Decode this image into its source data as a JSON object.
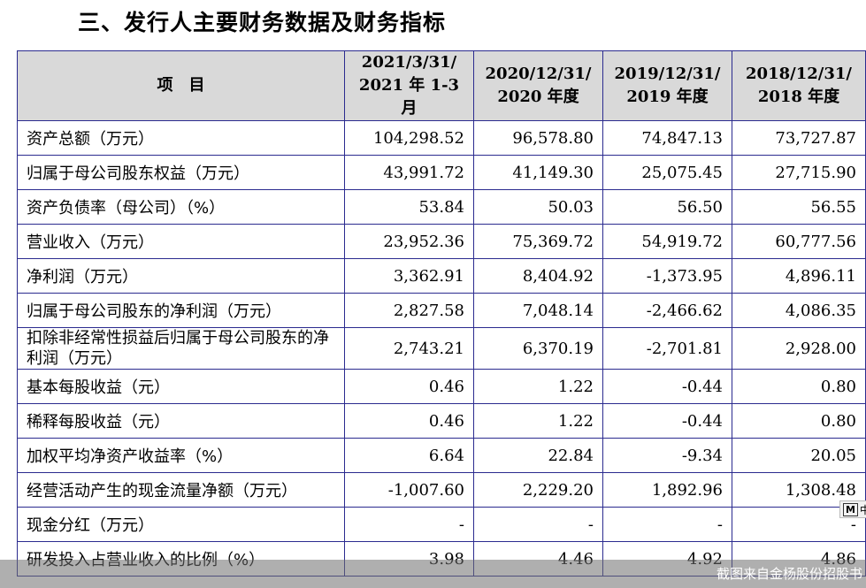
{
  "section_title": "三、发行人主要财务数据及财务指标",
  "table": {
    "header": {
      "item_label": "项　目",
      "periods": [
        {
          "line1": "2021/3/31/",
          "line2": "2021 年 1-3 月"
        },
        {
          "line1": "2020/12/31/",
          "line2": "2020 年度"
        },
        {
          "line1": "2019/12/31/",
          "line2": "2019 年度"
        },
        {
          "line1": "2018/12/31/",
          "line2": "2018 年度"
        }
      ]
    },
    "rows": [
      {
        "label": "资产总额（万元）",
        "values": [
          "104,298.52",
          "96,578.80",
          "74,847.13",
          "73,727.87"
        ]
      },
      {
        "label": "归属于母公司股东权益（万元）",
        "values": [
          "43,991.72",
          "41,149.30",
          "25,075.45",
          "27,715.90"
        ]
      },
      {
        "label": "资产负债率（母公司）（%）",
        "values": [
          "53.84",
          "50.03",
          "56.50",
          "56.55"
        ]
      },
      {
        "label": "营业收入（万元）",
        "values": [
          "23,952.36",
          "75,369.72",
          "54,919.72",
          "60,777.56"
        ]
      },
      {
        "label": "净利润（万元）",
        "values": [
          "3,362.91",
          "8,404.92",
          "-1,373.95",
          "4,896.11"
        ]
      },
      {
        "label": "归属于母公司股东的净利润（万元）",
        "values": [
          "2,827.58",
          "7,048.14",
          "-2,466.62",
          "4,086.35"
        ]
      },
      {
        "label": "扣除非经常性损益后归属于母公司股东的净利润（万元）",
        "values": [
          "2,743.21",
          "6,370.19",
          "-2,701.81",
          "2,928.00"
        ]
      },
      {
        "label": "基本每股收益（元）",
        "values": [
          "0.46",
          "1.22",
          "-0.44",
          "0.80"
        ]
      },
      {
        "label": "稀释每股收益（元）",
        "values": [
          "0.46",
          "1.22",
          "-0.44",
          "0.80"
        ]
      },
      {
        "label": "加权平均净资产收益率（%）",
        "values": [
          "6.64",
          "22.84",
          "-9.34",
          "20.05"
        ]
      },
      {
        "label": "经营活动产生的现金流量净额（万元）",
        "values": [
          "-1,007.60",
          "2,229.20",
          "1,892.96",
          "1,308.48"
        ]
      },
      {
        "label": "现金分红（万元）",
        "values": [
          "-",
          "-",
          "-",
          "-"
        ]
      },
      {
        "label": "研发投入占营业收入的比例（%）",
        "values": [
          "3.98",
          "4.46",
          "4.92",
          "4.86"
        ]
      }
    ]
  },
  "footer": {
    "watermark": "截图来自金杨股份招股书"
  },
  "floating_widget": {
    "icon": "m-icon",
    "label": "M",
    "extra": "中"
  }
}
